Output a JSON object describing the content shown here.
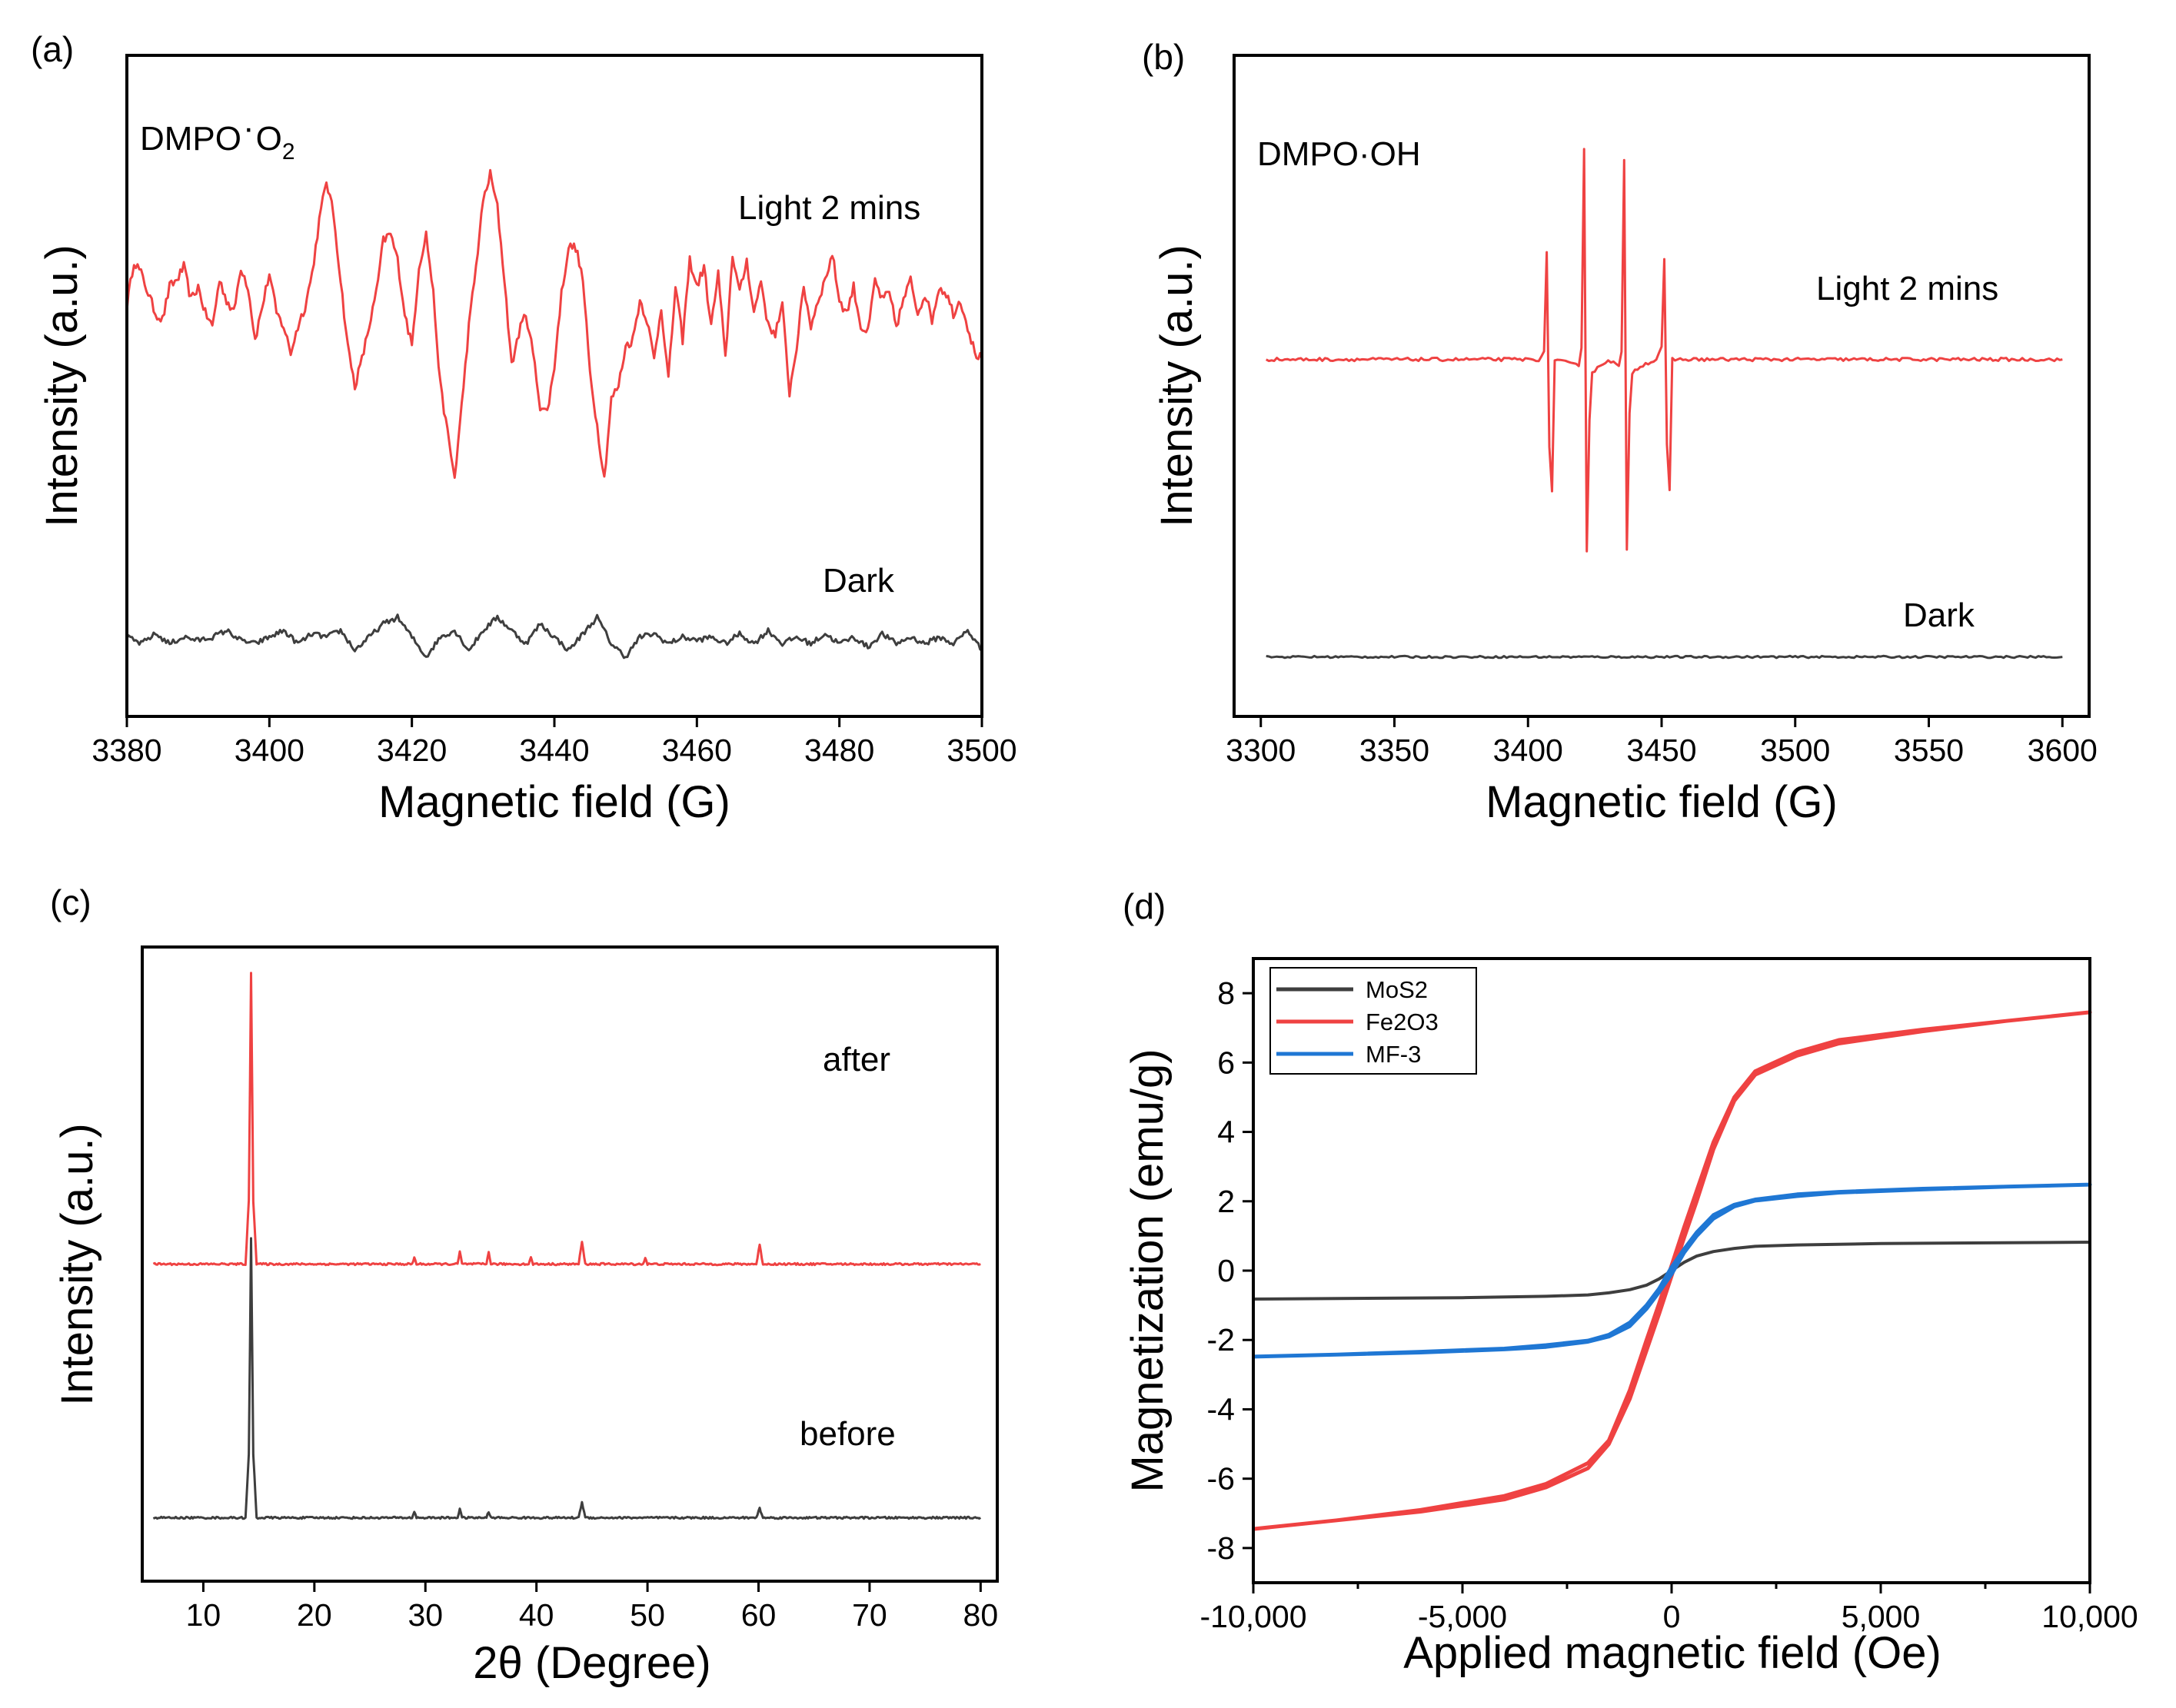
{
  "colors": {
    "light": "#ef4242",
    "dark": "#3e3e3e",
    "mf3": "#1f77d4",
    "frame": "#000000"
  },
  "panels": {
    "a": {
      "label": "(a)"
    },
    "b": {
      "label": "(b)"
    },
    "c": {
      "label": "(c)"
    },
    "d": {
      "label": "(d)"
    }
  },
  "chart_data": [
    {
      "id": "a",
      "type": "line",
      "title": "",
      "xlabel": "Magnetic field (G)",
      "ylabel": "Intensity (a.u.)",
      "xlim": [
        3380,
        3500
      ],
      "ylim": [
        0,
        10
      ],
      "xticks": [
        3380,
        3400,
        3420,
        3440,
        3460,
        3480,
        3500
      ],
      "yticks_visible": false,
      "annotations": {
        "species_main": "DMPO",
        "species_dot": "·",
        "species_o": "O",
        "species_sub": "2",
        "light": "Light 2 mins",
        "dark": "Dark"
      },
      "series": [
        {
          "name": "Light 2 mins",
          "color_key": "light",
          "noise": 0.15,
          "x": [
            3380,
            3381,
            3382,
            3383,
            3384,
            3385,
            3386,
            3387,
            3388,
            3389,
            3390,
            3391,
            3392,
            3393,
            3394,
            3395,
            3396,
            3397,
            3398,
            3399,
            3400,
            3401,
            3402,
            3403,
            3404,
            3405,
            3406,
            3407,
            3408,
            3409,
            3410,
            3411,
            3412,
            3413,
            3414,
            3415,
            3416,
            3417,
            3418,
            3419,
            3420,
            3421,
            3422,
            3423,
            3424,
            3425,
            3426,
            3427,
            3428,
            3429,
            3430,
            3431,
            3432,
            3433,
            3434,
            3435,
            3436,
            3437,
            3438,
            3439,
            3440,
            3441,
            3442,
            3443,
            3444,
            3445,
            3446,
            3447,
            3448,
            3449,
            3450,
            3451,
            3452,
            3453,
            3454,
            3455,
            3456,
            3457,
            3458,
            3459,
            3460,
            3461,
            3462,
            3463,
            3464,
            3465,
            3466,
            3467,
            3468,
            3469,
            3470,
            3471,
            3472,
            3473,
            3474,
            3475,
            3476,
            3477,
            3478,
            3479,
            3480,
            3481,
            3482,
            3483,
            3484,
            3485,
            3486,
            3487,
            3488,
            3489,
            3490,
            3491,
            3492,
            3493,
            3494,
            3495,
            3496,
            3497,
            3498,
            3499,
            3500
          ],
          "y": [
            6.2,
            6.9,
            6.7,
            6.4,
            6.1,
            6.0,
            6.5,
            6.6,
            6.8,
            6.3,
            6.5,
            6.1,
            5.9,
            6.6,
            6.3,
            6.1,
            6.8,
            6.5,
            5.7,
            6.2,
            6.7,
            6.1,
            5.9,
            5.5,
            5.9,
            6.2,
            6.7,
            7.5,
            8.1,
            7.6,
            6.6,
            5.6,
            5.0,
            5.4,
            5.9,
            6.4,
            7.2,
            7.3,
            6.9,
            6.1,
            5.6,
            6.8,
            7.3,
            6.4,
            5.0,
            4.3,
            3.6,
            4.7,
            5.9,
            6.8,
            7.8,
            8.2,
            7.7,
            6.6,
            5.3,
            5.8,
            6.1,
            5.5,
            4.7,
            4.6,
            5.3,
            6.4,
            7.1,
            7.1,
            6.6,
            5.2,
            4.4,
            3.6,
            4.8,
            5.0,
            5.6,
            5.7,
            6.3,
            6.0,
            5.4,
            6.2,
            5.1,
            6.5,
            5.7,
            6.9,
            6.5,
            6.8,
            5.9,
            6.7,
            5.4,
            7.0,
            6.4,
            6.9,
            6.1,
            6.6,
            5.9,
            5.8,
            6.2,
            4.9,
            5.6,
            6.5,
            5.9,
            6.3,
            6.6,
            7.0,
            6.3,
            6.1,
            6.5,
            5.9,
            5.8,
            6.6,
            6.3,
            6.4,
            5.9,
            6.3,
            6.6,
            6.1,
            6.4,
            6.0,
            6.5,
            6.4,
            6.1,
            6.3,
            5.9,
            5.5,
            5.4
          ]
        },
        {
          "name": "Dark",
          "color_key": "dark",
          "noise": 0.08,
          "x": [
            3380,
            3382,
            3384,
            3386,
            3388,
            3390,
            3392,
            3394,
            3396,
            3398,
            3400,
            3402,
            3404,
            3406,
            3408,
            3410,
            3412,
            3414,
            3416,
            3418,
            3420,
            3422,
            3424,
            3426,
            3428,
            3430,
            3432,
            3434,
            3436,
            3438,
            3440,
            3442,
            3444,
            3446,
            3448,
            3450,
            3452,
            3454,
            3456,
            3458,
            3460,
            3462,
            3464,
            3466,
            3468,
            3470,
            3472,
            3474,
            3476,
            3478,
            3480,
            3482,
            3484,
            3486,
            3488,
            3490,
            3492,
            3494,
            3496,
            3498,
            3500
          ],
          "y": [
            1.2,
            1.1,
            1.25,
            1.1,
            1.2,
            1.15,
            1.2,
            1.3,
            1.15,
            1.1,
            1.2,
            1.3,
            1.1,
            1.25,
            1.2,
            1.3,
            1.0,
            1.2,
            1.4,
            1.5,
            1.2,
            0.9,
            1.2,
            1.3,
            1.0,
            1.3,
            1.5,
            1.3,
            1.1,
            1.4,
            1.2,
            1.0,
            1.25,
            1.5,
            1.1,
            0.9,
            1.2,
            1.25,
            1.1,
            1.2,
            1.15,
            1.2,
            1.1,
            1.25,
            1.1,
            1.3,
            1.1,
            1.2,
            1.1,
            1.25,
            1.1,
            1.2,
            1.05,
            1.25,
            1.1,
            1.2,
            1.1,
            1.2,
            1.1,
            1.3,
            1.0
          ]
        }
      ]
    },
    {
      "id": "b",
      "type": "line",
      "title": "",
      "xlabel": "Magnetic field (G)",
      "ylabel": "Intensity (a.u.)",
      "xlim": [
        3300,
        3600
      ],
      "ylim": [
        0,
        10
      ],
      "xticks": [
        3300,
        3350,
        3400,
        3450,
        3500,
        3550,
        3600
      ],
      "yticks_visible": false,
      "annotations": {
        "species": "DMPO·OH",
        "light": "Light 2 mins",
        "dark": "Dark"
      },
      "series": [
        {
          "name": "Light 2 mins",
          "color_key": "light",
          "noise": 0.05,
          "x": [
            3302,
            3340,
            3380,
            3404,
            3406,
            3407,
            3408,
            3409,
            3410,
            3419,
            3420,
            3421,
            3422,
            3423,
            3424,
            3430,
            3434,
            3435,
            3436,
            3437,
            3438,
            3439,
            3442,
            3448,
            3450,
            3451,
            3452,
            3453,
            3454,
            3460,
            3500,
            3550,
            3600
          ],
          "y": [
            5.4,
            5.4,
            5.4,
            5.4,
            5.5,
            7.0,
            4.1,
            3.4,
            5.4,
            5.3,
            5.6,
            8.6,
            2.5,
            4.5,
            5.2,
            5.4,
            5.3,
            5.5,
            8.4,
            2.5,
            4.6,
            5.2,
            5.3,
            5.4,
            5.6,
            6.9,
            4.1,
            3.4,
            5.4,
            5.4,
            5.4,
            5.4,
            5.4
          ]
        },
        {
          "name": "Dark",
          "color_key": "dark",
          "noise": 0.03,
          "x": [
            3302,
            3400,
            3500,
            3600
          ],
          "y": [
            0.9,
            0.9,
            0.9,
            0.9
          ]
        }
      ]
    },
    {
      "id": "c",
      "type": "line",
      "title": "",
      "xlabel": "2θ (Degree)",
      "ylabel": "Intensity (a.u.)",
      "xlim": [
        5,
        80
      ],
      "ylim": [
        0,
        10
      ],
      "xticks": [
        10,
        20,
        30,
        40,
        50,
        60,
        70,
        80
      ],
      "yticks_visible": false,
      "annotations": {
        "after": "after",
        "before": "before"
      },
      "series": [
        {
          "name": "after",
          "color_key": "light",
          "noise": 0.03,
          "x": [
            5.5,
            13.8,
            14.1,
            14.3,
            14.5,
            14.8,
            28.8,
            29.0,
            29.2,
            32.9,
            33.1,
            33.3,
            35.5,
            35.7,
            35.9,
            39.3,
            39.5,
            39.7,
            43.8,
            44.1,
            44.4,
            49.6,
            49.8,
            50.0,
            59.8,
            60.1,
            60.4,
            80
          ],
          "y": [
            5.0,
            5.0,
            6.0,
            9.6,
            6.0,
            5.0,
            5.0,
            5.1,
            5.0,
            5.0,
            5.2,
            5.0,
            5.0,
            5.2,
            5.0,
            5.0,
            5.1,
            5.0,
            5.0,
            5.35,
            5.0,
            5.0,
            5.1,
            5.0,
            5.0,
            5.3,
            5.0,
            5.0
          ]
        },
        {
          "name": "before",
          "color_key": "dark",
          "noise": 0.03,
          "x": [
            5.5,
            13.8,
            14.1,
            14.3,
            14.5,
            14.8,
            28.8,
            29.0,
            29.2,
            32.9,
            33.1,
            33.3,
            35.5,
            35.7,
            35.9,
            43.8,
            44.1,
            44.4,
            59.8,
            60.1,
            60.4,
            80
          ],
          "y": [
            1.0,
            1.0,
            2.0,
            5.4,
            2.0,
            1.0,
            1.0,
            1.1,
            1.0,
            1.0,
            1.15,
            1.0,
            1.0,
            1.1,
            1.0,
            1.0,
            1.25,
            1.0,
            1.0,
            1.15,
            1.0,
            1.0
          ]
        }
      ]
    },
    {
      "id": "d",
      "type": "line",
      "title": "",
      "xlabel": "Applied magnetic field (Oe)",
      "ylabel": "Magnetization (emu/g)",
      "xlim": [
        -10000,
        10000
      ],
      "ylim": [
        -9,
        9
      ],
      "xticks": [
        -10000,
        -5000,
        0,
        5000,
        10000
      ],
      "xtick_labels": [
        "-10,000",
        "-5,000",
        "0",
        "5,000",
        "10,000"
      ],
      "yticks": [
        -8,
        -6,
        -4,
        -2,
        0,
        2,
        4,
        6,
        8
      ],
      "legend": {
        "position": "top-left",
        "entries": [
          "MoS2",
          "Fe2O3",
          "MF-3"
        ]
      },
      "series": [
        {
          "name": "MoS2",
          "color_key": "dark",
          "x": [
            -10000,
            -5000,
            -3000,
            -2000,
            -1500,
            -1000,
            -600,
            -300,
            0,
            300,
            600,
            1000,
            1500,
            2000,
            3000,
            5000,
            10000
          ],
          "y": [
            -0.82,
            -0.78,
            -0.74,
            -0.7,
            -0.64,
            -0.55,
            -0.42,
            -0.24,
            0.0,
            0.24,
            0.42,
            0.55,
            0.64,
            0.7,
            0.74,
            0.78,
            0.82
          ],
          "y_return": [
            -0.82,
            -0.78,
            -0.74,
            -0.7,
            -0.64,
            -0.55,
            -0.42,
            -0.24,
            0.0,
            0.24,
            0.42,
            0.55,
            0.64,
            0.7,
            0.74,
            0.78,
            0.82
          ]
        },
        {
          "name": "Fe2O3",
          "color_key": "light",
          "x": [
            -10000,
            -8000,
            -6000,
            -4000,
            -3000,
            -2000,
            -1500,
            -1000,
            -600,
            -300,
            0,
            300,
            600,
            1000,
            1500,
            2000,
            3000,
            4000,
            6000,
            8000,
            10000
          ],
          "y": [
            -7.45,
            -7.2,
            -6.95,
            -6.6,
            -6.25,
            -5.7,
            -5.0,
            -3.7,
            -2.3,
            -1.25,
            -0.15,
            0.95,
            2.0,
            3.5,
            4.9,
            5.65,
            6.2,
            6.55,
            6.9,
            7.2,
            7.45
          ],
          "y_return": [
            -7.45,
            -7.2,
            -6.9,
            -6.5,
            -6.15,
            -5.55,
            -4.9,
            -3.45,
            -2.0,
            -0.95,
            0.15,
            1.25,
            2.3,
            3.7,
            5.0,
            5.75,
            6.3,
            6.65,
            6.95,
            7.2,
            7.45
          ]
        },
        {
          "name": "MF-3",
          "color_key": "mf3",
          "x": [
            -10000,
            -8000,
            -6000,
            -4000,
            -3000,
            -2000,
            -1500,
            -1000,
            -600,
            -300,
            0,
            300,
            600,
            1000,
            1500,
            2000,
            3000,
            4000,
            6000,
            8000,
            10000
          ],
          "y": [
            -2.48,
            -2.42,
            -2.36,
            -2.27,
            -2.2,
            -2.05,
            -1.9,
            -1.6,
            -1.1,
            -0.62,
            -0.1,
            0.52,
            1.0,
            1.5,
            1.85,
            2.02,
            2.15,
            2.25,
            2.34,
            2.42,
            2.48
          ],
          "y_return": [
            -2.48,
            -2.42,
            -2.34,
            -2.25,
            -2.15,
            -2.02,
            -1.85,
            -1.5,
            -1.0,
            -0.52,
            0.1,
            0.62,
            1.1,
            1.6,
            1.9,
            2.05,
            2.2,
            2.27,
            2.36,
            2.42,
            2.48
          ]
        }
      ]
    }
  ]
}
